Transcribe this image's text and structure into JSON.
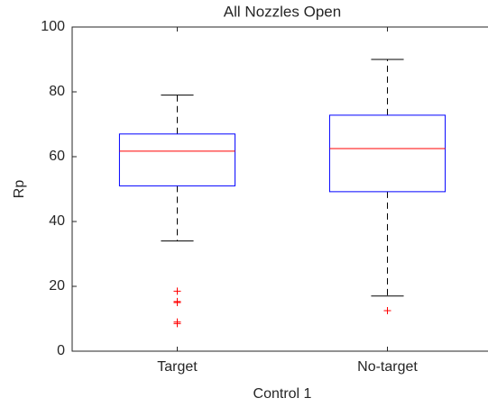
{
  "chart_data": {
    "type": "box",
    "title": "All Nozzles Open",
    "xlabel": "Control 1",
    "ylabel": "Rp",
    "categories": [
      "Target",
      "No-target"
    ],
    "boxes": [
      {
        "whisker_low": 34,
        "q1": 51,
        "median": 61.7,
        "q3": 67,
        "whisker_high": 79,
        "outliers": [
          18.5,
          15.3,
          15,
          9,
          8.5
        ]
      },
      {
        "whisker_low": 17,
        "q1": 49.2,
        "median": 62.5,
        "q3": 72.8,
        "whisker_high": 90,
        "outliers": [
          12.5
        ]
      }
    ],
    "box_color": "#0000ff",
    "median_color": "#ff0000",
    "whisker_color": "#000000",
    "outlier_color": "#ff0000",
    "ylim": [
      0,
      100
    ],
    "yticks": [
      0,
      20,
      40,
      60,
      80,
      100
    ]
  }
}
